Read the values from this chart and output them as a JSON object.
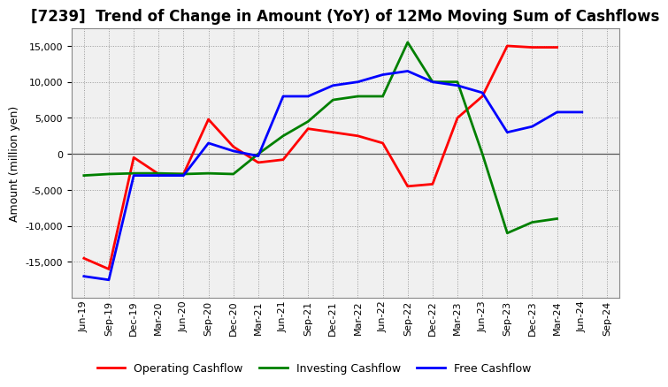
{
  "title": "[7239]  Trend of Change in Amount (YoY) of 12Mo Moving Sum of Cashflows",
  "ylabel": "Amount (million yen)",
  "x_labels": [
    "Jun-19",
    "Sep-19",
    "Dec-19",
    "Mar-20",
    "Jun-20",
    "Sep-20",
    "Dec-20",
    "Mar-21",
    "Jun-21",
    "Sep-21",
    "Dec-21",
    "Mar-22",
    "Jun-22",
    "Sep-22",
    "Dec-22",
    "Mar-23",
    "Jun-23",
    "Sep-23",
    "Dec-23",
    "Mar-24",
    "Jun-24",
    "Sep-24"
  ],
  "operating": [
    -14500,
    -16000,
    -500,
    -2800,
    -2800,
    4800,
    1000,
    -1200,
    -800,
    3500,
    3000,
    2500,
    1500,
    -4500,
    -4200,
    5000,
    8000,
    15000,
    14800,
    14800,
    null,
    null
  ],
  "investing": [
    -3000,
    -2800,
    -2700,
    -2700,
    -2800,
    -2700,
    -2800,
    0,
    2500,
    4500,
    7500,
    8000,
    8000,
    15500,
    10000,
    10000,
    0,
    -11000,
    -9500,
    -9000,
    null,
    null
  ],
  "free": [
    -17000,
    -17500,
    -3000,
    -3000,
    -3000,
    1500,
    400,
    -300,
    8000,
    8000,
    9500,
    10000,
    11000,
    11500,
    10000,
    9500,
    8500,
    3000,
    3800,
    5800,
    5800,
    null
  ],
  "operating_color": "#ff0000",
  "investing_color": "#008000",
  "free_color": "#0000ff",
  "ylim": [
    -20000,
    17500
  ],
  "yticks": [
    -15000,
    -10000,
    -5000,
    0,
    5000,
    10000,
    15000
  ],
  "plot_bg_color": "#f0f0f0",
  "bg_color": "#ffffff",
  "grid_color": "#999999",
  "linewidth": 2.0,
  "title_fontsize": 12,
  "tick_fontsize": 8,
  "ylabel_fontsize": 9,
  "legend_fontsize": 9
}
